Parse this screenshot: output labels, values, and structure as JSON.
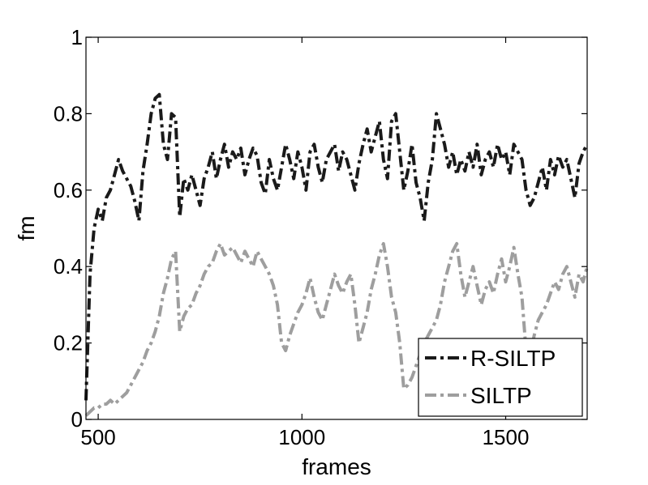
{
  "chart_data": {
    "type": "line",
    "title": "",
    "xlabel": "frames",
    "ylabel": "fm",
    "xlim": [
      470,
      1700
    ],
    "ylim": [
      0,
      1
    ],
    "xticks": [
      500,
      1000,
      1500
    ],
    "yticks": [
      0,
      0.2,
      0.4,
      0.6,
      0.8,
      1
    ],
    "xtick_labels": [
      "500",
      "1000",
      "1500"
    ],
    "ytick_labels": [
      "0",
      "0.2",
      "0.4",
      "0.6",
      "0.8",
      "1"
    ],
    "grid": false,
    "legend_position": "bottom-right",
    "series": [
      {
        "name": "R-SILTP",
        "color": "#1a1a1a",
        "line_style": "dash-dot",
        "x": [
          470,
          480,
          490,
          500,
          510,
          520,
          530,
          540,
          550,
          560,
          570,
          580,
          590,
          600,
          610,
          620,
          630,
          640,
          650,
          660,
          670,
          680,
          690,
          700,
          710,
          720,
          730,
          740,
          750,
          760,
          770,
          780,
          790,
          800,
          810,
          820,
          830,
          840,
          850,
          860,
          870,
          880,
          890,
          900,
          910,
          920,
          930,
          940,
          950,
          960,
          970,
          980,
          990,
          1000,
          1010,
          1020,
          1030,
          1040,
          1050,
          1060,
          1070,
          1080,
          1090,
          1100,
          1110,
          1120,
          1130,
          1140,
          1150,
          1160,
          1170,
          1180,
          1190,
          1200,
          1210,
          1220,
          1230,
          1240,
          1250,
          1260,
          1270,
          1280,
          1290,
          1300,
          1310,
          1320,
          1330,
          1340,
          1350,
          1360,
          1370,
          1380,
          1390,
          1400,
          1410,
          1420,
          1430,
          1440,
          1450,
          1460,
          1470,
          1480,
          1490,
          1500,
          1510,
          1520,
          1530,
          1540,
          1550,
          1560,
          1570,
          1580,
          1590,
          1600,
          1610,
          1620,
          1630,
          1640,
          1650,
          1660,
          1670,
          1680,
          1690,
          1700
        ],
        "y": [
          0.05,
          0.38,
          0.5,
          0.55,
          0.52,
          0.58,
          0.6,
          0.64,
          0.68,
          0.65,
          0.63,
          0.61,
          0.57,
          0.52,
          0.65,
          0.72,
          0.8,
          0.84,
          0.85,
          0.72,
          0.68,
          0.8,
          0.79,
          0.53,
          0.63,
          0.6,
          0.64,
          0.6,
          0.56,
          0.63,
          0.66,
          0.7,
          0.63,
          0.68,
          0.72,
          0.66,
          0.7,
          0.68,
          0.71,
          0.64,
          0.68,
          0.71,
          0.69,
          0.62,
          0.59,
          0.68,
          0.63,
          0.6,
          0.66,
          0.72,
          0.68,
          0.63,
          0.7,
          0.66,
          0.6,
          0.7,
          0.72,
          0.66,
          0.62,
          0.68,
          0.7,
          0.72,
          0.65,
          0.7,
          0.68,
          0.64,
          0.6,
          0.67,
          0.72,
          0.76,
          0.7,
          0.74,
          0.78,
          0.68,
          0.63,
          0.78,
          0.8,
          0.7,
          0.6,
          0.65,
          0.72,
          0.62,
          0.58,
          0.52,
          0.62,
          0.68,
          0.8,
          0.76,
          0.72,
          0.66,
          0.7,
          0.64,
          0.68,
          0.65,
          0.7,
          0.66,
          0.72,
          0.64,
          0.68,
          0.7,
          0.66,
          0.72,
          0.68,
          0.7,
          0.64,
          0.72,
          0.7,
          0.68,
          0.6,
          0.56,
          0.58,
          0.62,
          0.66,
          0.6,
          0.68,
          0.64,
          0.69,
          0.66,
          0.68,
          0.63,
          0.58,
          0.67,
          0.7,
          0.72
        ]
      },
      {
        "name": "SILTP",
        "color": "#9e9e9e",
        "line_style": "dash-dot",
        "x": [
          470,
          480,
          490,
          500,
          510,
          520,
          530,
          540,
          550,
          560,
          570,
          580,
          590,
          600,
          610,
          620,
          630,
          640,
          650,
          660,
          670,
          680,
          690,
          700,
          710,
          720,
          730,
          740,
          750,
          760,
          770,
          780,
          790,
          800,
          810,
          820,
          830,
          840,
          850,
          860,
          870,
          880,
          890,
          900,
          910,
          920,
          930,
          940,
          950,
          960,
          970,
          980,
          990,
          1000,
          1010,
          1020,
          1030,
          1040,
          1050,
          1060,
          1070,
          1080,
          1090,
          1100,
          1110,
          1120,
          1130,
          1140,
          1150,
          1160,
          1170,
          1180,
          1190,
          1200,
          1210,
          1220,
          1230,
          1240,
          1250,
          1260,
          1270,
          1280,
          1290,
          1300,
          1310,
          1320,
          1330,
          1340,
          1350,
          1360,
          1370,
          1380,
          1390,
          1400,
          1410,
          1420,
          1430,
          1440,
          1450,
          1460,
          1470,
          1480,
          1490,
          1500,
          1510,
          1520,
          1530,
          1540,
          1550,
          1560,
          1570,
          1580,
          1590,
          1600,
          1610,
          1620,
          1630,
          1640,
          1650,
          1660,
          1670,
          1680,
          1690,
          1700
        ],
        "y": [
          0.01,
          0.02,
          0.03,
          0.03,
          0.04,
          0.04,
          0.05,
          0.04,
          0.05,
          0.06,
          0.07,
          0.09,
          0.11,
          0.13,
          0.15,
          0.18,
          0.2,
          0.23,
          0.27,
          0.33,
          0.37,
          0.42,
          0.44,
          0.23,
          0.27,
          0.29,
          0.3,
          0.33,
          0.35,
          0.38,
          0.4,
          0.41,
          0.44,
          0.46,
          0.43,
          0.44,
          0.45,
          0.43,
          0.41,
          0.44,
          0.42,
          0.4,
          0.44,
          0.42,
          0.4,
          0.38,
          0.35,
          0.3,
          0.2,
          0.18,
          0.22,
          0.25,
          0.28,
          0.3,
          0.33,
          0.37,
          0.32,
          0.28,
          0.26,
          0.3,
          0.34,
          0.38,
          0.35,
          0.33,
          0.36,
          0.38,
          0.3,
          0.2,
          0.24,
          0.28,
          0.34,
          0.38,
          0.43,
          0.46,
          0.4,
          0.32,
          0.28,
          0.2,
          0.08,
          0.09,
          0.11,
          0.14,
          0.17,
          0.2,
          0.22,
          0.24,
          0.26,
          0.3,
          0.36,
          0.4,
          0.44,
          0.46,
          0.38,
          0.32,
          0.36,
          0.4,
          0.35,
          0.3,
          0.34,
          0.36,
          0.33,
          0.38,
          0.42,
          0.36,
          0.4,
          0.45,
          0.38,
          0.32,
          0.18,
          0.17,
          0.22,
          0.26,
          0.28,
          0.3,
          0.33,
          0.36,
          0.34,
          0.38,
          0.4,
          0.36,
          0.32,
          0.38,
          0.36,
          0.4
        ]
      }
    ]
  }
}
